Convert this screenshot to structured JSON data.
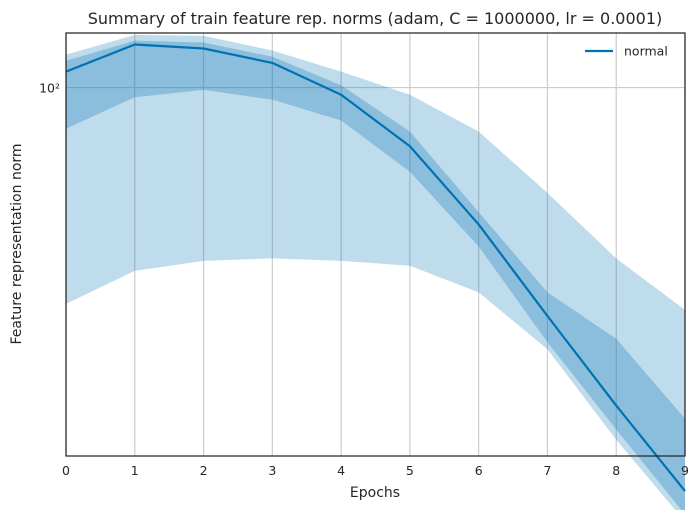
{
  "chart_data": {
    "type": "line",
    "title": "Summary of train feature rep. norms (adam, C = 1000000, lr = 0.0001)",
    "xlabel": "Epochs",
    "ylabel": "Feature representation norm",
    "x": [
      0,
      1,
      2,
      3,
      4,
      5,
      6,
      7,
      8,
      9
    ],
    "x_ticks": [
      "0",
      "1",
      "2",
      "3",
      "4",
      "5",
      "6",
      "7",
      "8",
      "9"
    ],
    "y_scale": "log",
    "y_tick_labels": [
      {
        "value": 100,
        "label": "10²"
      }
    ],
    "xlim": [
      0,
      9
    ],
    "ylim": [
      21,
      126
    ],
    "grid": true,
    "legend_position": "top-right",
    "series": [
      {
        "name": "normal",
        "color": "#0072b2",
        "values": [
          107,
          120,
          118,
          111,
          97,
          78,
          56,
          38,
          26,
          18.1
        ],
        "band_inner": {
          "lower": [
            84,
            96,
            99,
            95,
            87,
            70,
            51,
            34,
            23.5,
            16.4
          ],
          "upper": [
            112,
            122,
            121,
            114,
            101,
            83,
            59,
            42,
            34.5,
            24.6
          ]
        },
        "band_outer": {
          "lower": [
            40,
            46,
            48,
            48.5,
            48,
            47,
            42,
            33,
            22.5,
            15.9
          ],
          "upper": [
            115,
            125,
            124.5,
            117,
            107,
            97,
            83,
            64,
            48.5,
            39
          ]
        }
      }
    ]
  }
}
